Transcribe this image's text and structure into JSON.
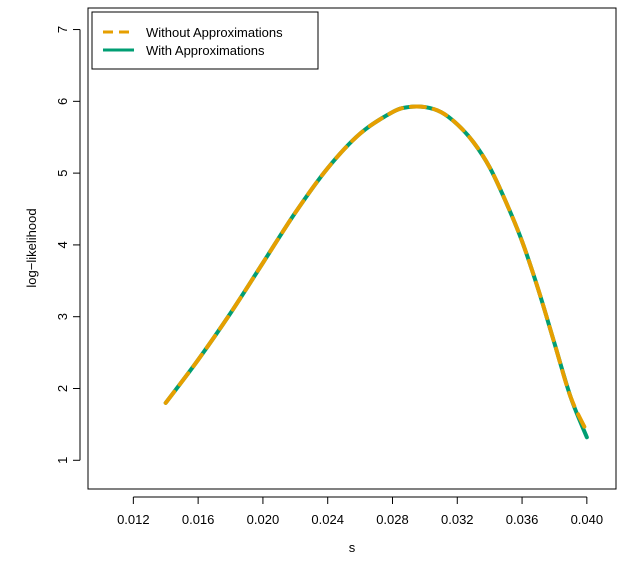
{
  "chart_data": {
    "type": "line",
    "title": "",
    "xlabel": "s",
    "ylabel": "log−likelihood",
    "xlim": [
      0.0092,
      0.0418
    ],
    "ylim": [
      0.6,
      7.3
    ],
    "xticks": [
      "0.012",
      "0.016",
      "0.020",
      "0.024",
      "0.028",
      "0.032",
      "0.036",
      "0.040"
    ],
    "yticks": [
      "1",
      "2",
      "3",
      "4",
      "5",
      "6",
      "7"
    ],
    "grid": false,
    "legend_position": "top-left",
    "series": [
      {
        "name": "Without Approximations",
        "color": "#E69F00",
        "style": "dashed",
        "x": [
          0.014,
          0.016,
          0.018,
          0.02,
          0.022,
          0.024,
          0.026,
          0.028,
          0.029,
          0.03,
          0.031,
          0.032,
          0.033,
          0.034,
          0.035,
          0.036,
          0.037,
          0.038,
          0.039,
          0.04
        ],
        "y": [
          1.8,
          2.4,
          3.05,
          3.75,
          4.45,
          5.07,
          5.55,
          5.85,
          5.92,
          5.92,
          5.85,
          5.68,
          5.43,
          5.08,
          4.6,
          4.05,
          3.38,
          2.63,
          1.88,
          1.4
        ]
      },
      {
        "name": "With Approximations",
        "color": "#009E73",
        "style": "solid",
        "x": [
          0.014,
          0.016,
          0.018,
          0.02,
          0.022,
          0.024,
          0.026,
          0.028,
          0.029,
          0.03,
          0.031,
          0.032,
          0.033,
          0.034,
          0.035,
          0.036,
          0.037,
          0.038,
          0.039,
          0.04
        ],
        "y": [
          1.8,
          2.4,
          3.05,
          3.75,
          4.45,
          5.07,
          5.55,
          5.85,
          5.92,
          5.92,
          5.85,
          5.68,
          5.43,
          5.08,
          4.6,
          4.05,
          3.38,
          2.63,
          1.88,
          1.32
        ]
      }
    ]
  }
}
